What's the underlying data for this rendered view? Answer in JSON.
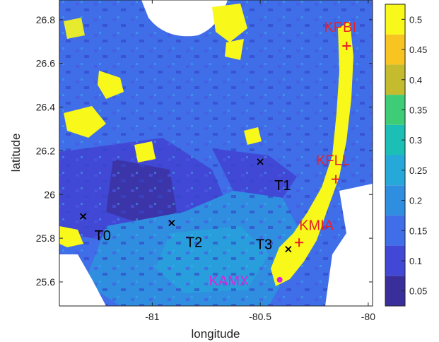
{
  "chart_data": {
    "type": "heatmap",
    "xlabel": "longitude",
    "ylabel": "latitude",
    "xlim": [
      -81.43,
      -79.98
    ],
    "ylim": [
      25.49,
      26.89
    ],
    "xticks": [
      -81,
      -80.5,
      -80
    ],
    "xtick_labels": [
      "-81",
      "-80.5",
      "-80"
    ],
    "yticks": [
      25.6,
      25.8,
      26.0,
      26.2,
      26.4,
      26.6,
      26.8
    ],
    "ytick_labels": [
      "25.6",
      "25.8",
      "26",
      "26.2",
      "26.4",
      "26.6",
      "26.8"
    ],
    "colorbar": {
      "min": 0.025,
      "max": 0.525,
      "ticks": [
        0.05,
        0.1,
        0.15,
        0.2,
        0.25,
        0.3,
        0.35,
        0.4,
        0.45,
        0.5
      ],
      "tick_labels": [
        "0.05",
        "0.1",
        "0.15",
        "0.2",
        "0.25",
        "0.3",
        "0.35",
        "0.4",
        "0.45",
        "0.5"
      ],
      "colors": [
        "#3a2f9a",
        "#4148d6",
        "#3f6ee8",
        "#2f8ee0",
        "#26a8d8",
        "#1cbfb6",
        "#3ecc77",
        "#c4bb2e",
        "#f8c422",
        "#f8f81a",
        "#f4f41a"
      ]
    },
    "sites": [
      {
        "label": "T0",
        "lon": -81.32,
        "lat": 25.9,
        "marker": "x",
        "color": "#000000"
      },
      {
        "label": "T2",
        "lon": -80.91,
        "lat": 25.87,
        "marker": "x",
        "color": "#000000"
      },
      {
        "label": "T1",
        "lon": -80.5,
        "lat": 26.15,
        "marker": "x",
        "color": "#000000"
      },
      {
        "label": "T3",
        "lon": -80.37,
        "lat": 25.75,
        "marker": "x",
        "color": "#000000"
      },
      {
        "label": "KPBI",
        "lon": -80.1,
        "lat": 26.68,
        "marker": "+",
        "color": "#e8202a"
      },
      {
        "label": "KFLL",
        "lon": -80.15,
        "lat": 26.07,
        "marker": "+",
        "color": "#e8202a"
      },
      {
        "label": "KMIA",
        "lon": -80.32,
        "lat": 25.78,
        "marker": "+",
        "color": "#e8202a"
      },
      {
        "label": "KAMX",
        "lon": -80.41,
        "lat": 25.61,
        "marker": "dot",
        "color": "#e020e0"
      }
    ]
  }
}
